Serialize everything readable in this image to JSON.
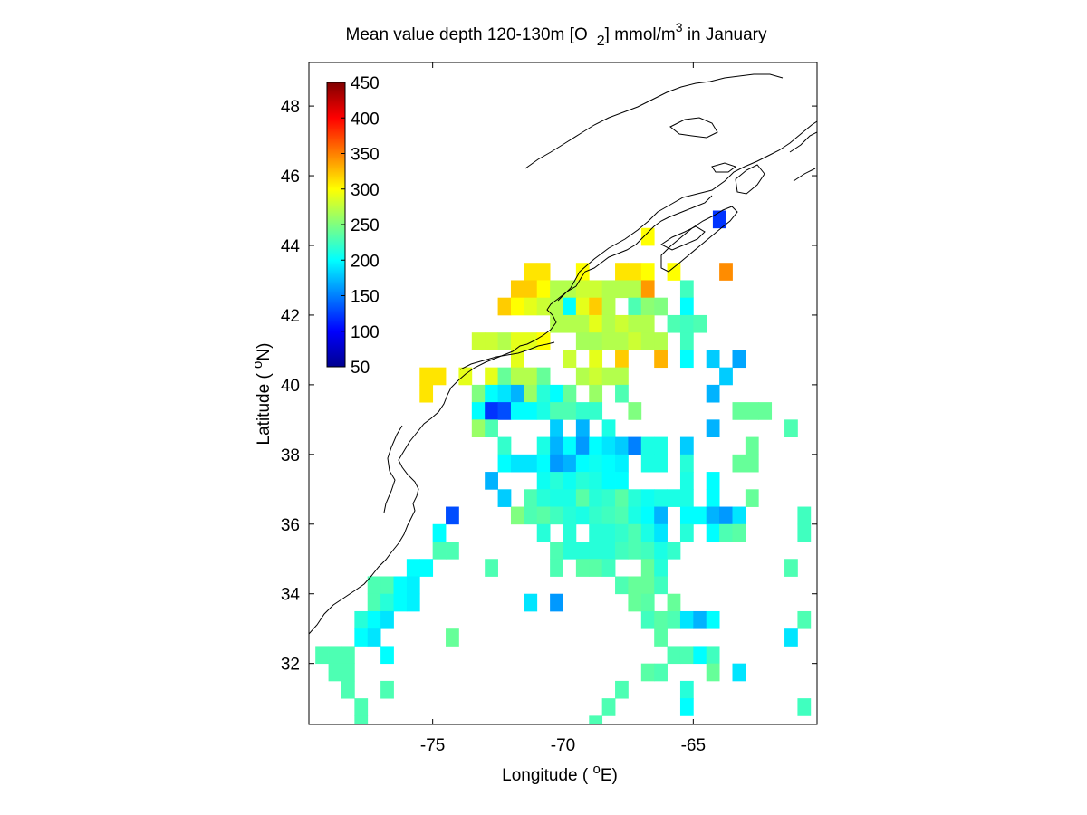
{
  "chart_data": {
    "type": "heatmap",
    "title": "Mean value depth 120-130m [O",
    "title_sub": "2",
    "title_mid": "] mmol/m",
    "title_sup": "3",
    "title_end": " in January",
    "xlabel_pre": "Longitude ( ",
    "xlabel_sup": "o",
    "xlabel_post": "E)",
    "ylabel_pre": "Latitude ( ",
    "ylabel_sup": "o",
    "ylabel_post": "N)",
    "xlim": [
      -79.75,
      -60.25
    ],
    "ylim": [
      30.25,
      49.25
    ],
    "xticks": [
      -75,
      -70,
      -65
    ],
    "xtick_labels": [
      "-75",
      "-70",
      "-65"
    ],
    "yticks": [
      32,
      34,
      36,
      38,
      40,
      42,
      44,
      46,
      48
    ],
    "ytick_labels": [
      "32",
      "34",
      "36",
      "38",
      "40",
      "42",
      "44",
      "46",
      "48"
    ],
    "colorbar": {
      "range": [
        50,
        450
      ],
      "ticks": [
        50,
        100,
        150,
        200,
        250,
        300,
        350,
        400,
        450
      ],
      "tick_labels": [
        "50",
        "100",
        "150",
        "200",
        "250",
        "300",
        "350",
        "400",
        "450"
      ],
      "colormap": "jet",
      "placement": "top-left inside axes"
    },
    "grid": false,
    "cell_size_deg": 0.5,
    "cells": [
      [
        -64.0,
        44.75,
        120
      ],
      [
        -66.75,
        44.25,
        300
      ],
      [
        -71.25,
        43.25,
        310
      ],
      [
        -70.75,
        43.25,
        310
      ],
      [
        -69.25,
        43.25,
        300
      ],
      [
        -67.75,
        43.25,
        310
      ],
      [
        -67.25,
        43.25,
        310
      ],
      [
        -66.75,
        43.25,
        300
      ],
      [
        -65.75,
        43.25,
        300
      ],
      [
        -63.75,
        43.25,
        345
      ],
      [
        -71.75,
        42.75,
        320
      ],
      [
        -71.25,
        42.75,
        320
      ],
      [
        -70.75,
        42.75,
        300
      ],
      [
        -70.25,
        42.75,
        270
      ],
      [
        -69.75,
        42.75,
        270
      ],
      [
        -69.25,
        42.75,
        280
      ],
      [
        -68.75,
        42.75,
        280
      ],
      [
        -68.25,
        42.75,
        270
      ],
      [
        -67.75,
        42.75,
        270
      ],
      [
        -67.25,
        42.75,
        270
      ],
      [
        -66.75,
        42.75,
        340
      ],
      [
        -65.25,
        42.75,
        225
      ],
      [
        -72.25,
        42.25,
        320
      ],
      [
        -71.75,
        42.25,
        300
      ],
      [
        -71.25,
        42.25,
        290
      ],
      [
        -70.75,
        42.25,
        280
      ],
      [
        -70.25,
        42.25,
        270
      ],
      [
        -69.75,
        42.25,
        200
      ],
      [
        -69.25,
        42.25,
        290
      ],
      [
        -68.75,
        42.25,
        320
      ],
      [
        -68.25,
        42.25,
        270
      ],
      [
        -67.25,
        42.25,
        230
      ],
      [
        -66.75,
        42.25,
        255
      ],
      [
        -66.25,
        42.25,
        250
      ],
      [
        -65.25,
        42.25,
        200
      ],
      [
        -70.25,
        41.75,
        270
      ],
      [
        -69.75,
        41.75,
        270
      ],
      [
        -69.25,
        41.75,
        270
      ],
      [
        -68.75,
        41.75,
        290
      ],
      [
        -68.25,
        41.75,
        270
      ],
      [
        -67.75,
        41.75,
        280
      ],
      [
        -67.25,
        41.75,
        270
      ],
      [
        -66.75,
        41.75,
        270
      ],
      [
        -65.75,
        41.75,
        230
      ],
      [
        -65.25,
        41.75,
        225
      ],
      [
        -64.75,
        41.75,
        230
      ],
      [
        -73.25,
        41.25,
        280
      ],
      [
        -72.75,
        41.25,
        280
      ],
      [
        -72.25,
        41.25,
        270
      ],
      [
        -71.75,
        41.25,
        290
      ],
      [
        -71.25,
        41.25,
        290
      ],
      [
        -70.75,
        41.25,
        300
      ],
      [
        -69.25,
        41.25,
        265
      ],
      [
        -68.75,
        41.25,
        265
      ],
      [
        -68.25,
        41.25,
        270
      ],
      [
        -67.75,
        41.25,
        270
      ],
      [
        -67.25,
        41.25,
        280
      ],
      [
        -66.75,
        41.25,
        270
      ],
      [
        -66.25,
        41.25,
        270
      ],
      [
        -65.25,
        41.25,
        225
      ],
      [
        -71.75,
        40.75,
        290
      ],
      [
        -69.75,
        40.75,
        280
      ],
      [
        -68.75,
        40.75,
        290
      ],
      [
        -67.75,
        40.75,
        320
      ],
      [
        -66.25,
        40.75,
        330
      ],
      [
        -65.25,
        40.75,
        200
      ],
      [
        -64.25,
        40.75,
        180
      ],
      [
        -63.25,
        40.75,
        165
      ],
      [
        -75.25,
        40.25,
        310
      ],
      [
        -74.75,
        40.25,
        310
      ],
      [
        -73.75,
        40.25,
        290
      ],
      [
        -72.75,
        40.25,
        290
      ],
      [
        -72.25,
        40.25,
        240
      ],
      [
        -71.75,
        40.25,
        270
      ],
      [
        -71.25,
        40.25,
        270
      ],
      [
        -70.75,
        40.25,
        240
      ],
      [
        -69.25,
        40.25,
        270
      ],
      [
        -68.75,
        40.25,
        280
      ],
      [
        -68.25,
        40.25,
        270
      ],
      [
        -67.75,
        40.25,
        270
      ],
      [
        -63.75,
        40.25,
        180
      ],
      [
        -75.25,
        39.75,
        310
      ],
      [
        -73.25,
        39.75,
        250
      ],
      [
        -72.75,
        39.75,
        200
      ],
      [
        -72.25,
        39.75,
        190
      ],
      [
        -71.75,
        39.75,
        170
      ],
      [
        -71.25,
        39.75,
        260
      ],
      [
        -70.75,
        39.75,
        215
      ],
      [
        -70.25,
        39.75,
        200
      ],
      [
        -69.75,
        39.75,
        240
      ],
      [
        -68.75,
        39.75,
        260
      ],
      [
        -67.75,
        39.75,
        230
      ],
      [
        -64.25,
        39.75,
        170
      ],
      [
        -73.25,
        39.25,
        200
      ],
      [
        -72.75,
        39.25,
        120
      ],
      [
        -72.25,
        39.25,
        130
      ],
      [
        -71.75,
        39.25,
        200
      ],
      [
        -71.25,
        39.25,
        200
      ],
      [
        -70.75,
        39.25,
        210
      ],
      [
        -70.25,
        39.25,
        230
      ],
      [
        -69.75,
        39.25,
        230
      ],
      [
        -69.25,
        39.25,
        220
      ],
      [
        -68.75,
        39.25,
        220
      ],
      [
        -67.25,
        39.25,
        250
      ],
      [
        -63.25,
        39.25,
        240
      ],
      [
        -62.75,
        39.25,
        240
      ],
      [
        -62.25,
        39.25,
        240
      ],
      [
        -73.25,
        38.75,
        260
      ],
      [
        -72.75,
        38.75,
        230
      ],
      [
        -70.25,
        38.75,
        180
      ],
      [
        -69.25,
        38.75,
        170
      ],
      [
        -68.25,
        38.75,
        210
      ],
      [
        -64.25,
        38.75,
        170
      ],
      [
        -61.25,
        38.75,
        230
      ],
      [
        -72.25,
        38.25,
        220
      ],
      [
        -70.75,
        38.25,
        210
      ],
      [
        -70.25,
        38.25,
        170
      ],
      [
        -69.75,
        38.25,
        200
      ],
      [
        -69.25,
        38.25,
        160
      ],
      [
        -68.75,
        38.25,
        200
      ],
      [
        -68.25,
        38.25,
        190
      ],
      [
        -67.75,
        38.25,
        180
      ],
      [
        -67.25,
        38.25,
        150
      ],
      [
        -66.75,
        38.25,
        210
      ],
      [
        -66.25,
        38.25,
        210
      ],
      [
        -65.25,
        38.25,
        180
      ],
      [
        -62.75,
        38.25,
        240
      ],
      [
        -72.25,
        37.75,
        200
      ],
      [
        -71.75,
        37.75,
        190
      ],
      [
        -71.25,
        37.75,
        190
      ],
      [
        -70.75,
        37.75,
        200
      ],
      [
        -70.25,
        37.75,
        160
      ],
      [
        -69.75,
        37.75,
        170
      ],
      [
        -69.25,
        37.75,
        200
      ],
      [
        -68.75,
        37.75,
        205
      ],
      [
        -68.25,
        37.75,
        200
      ],
      [
        -67.75,
        37.75,
        195
      ],
      [
        -66.75,
        37.75,
        210
      ],
      [
        -66.25,
        37.75,
        210
      ],
      [
        -65.25,
        37.75,
        215
      ],
      [
        -63.25,
        37.75,
        240
      ],
      [
        -62.75,
        37.75,
        240
      ],
      [
        -72.75,
        37.25,
        170
      ],
      [
        -70.75,
        37.25,
        205
      ],
      [
        -70.25,
        37.25,
        215
      ],
      [
        -69.75,
        37.25,
        205
      ],
      [
        -69.25,
        37.25,
        215
      ],
      [
        -68.75,
        37.25,
        210
      ],
      [
        -68.25,
        37.25,
        200
      ],
      [
        -67.75,
        37.25,
        200
      ],
      [
        -65.25,
        37.25,
        210
      ],
      [
        -64.25,
        37.25,
        200
      ],
      [
        -72.25,
        36.75,
        180
      ],
      [
        -71.25,
        36.75,
        230
      ],
      [
        -70.75,
        36.75,
        215
      ],
      [
        -70.25,
        36.75,
        210
      ],
      [
        -69.75,
        36.75,
        210
      ],
      [
        -69.25,
        36.75,
        235
      ],
      [
        -68.75,
        36.75,
        215
      ],
      [
        -68.25,
        36.75,
        220
      ],
      [
        -67.75,
        36.75,
        235
      ],
      [
        -67.25,
        36.75,
        215
      ],
      [
        -66.75,
        36.75,
        205
      ],
      [
        -66.25,
        36.75,
        210
      ],
      [
        -65.75,
        36.75,
        210
      ],
      [
        -65.25,
        36.75,
        210
      ],
      [
        -64.25,
        36.75,
        200
      ],
      [
        -62.75,
        36.75,
        240
      ],
      [
        -74.25,
        36.25,
        130
      ],
      [
        -71.75,
        36.25,
        250
      ],
      [
        -71.25,
        36.25,
        230
      ],
      [
        -70.75,
        36.25,
        235
      ],
      [
        -70.25,
        36.25,
        225
      ],
      [
        -69.75,
        36.25,
        215
      ],
      [
        -69.25,
        36.25,
        210
      ],
      [
        -68.75,
        36.25,
        220
      ],
      [
        -68.25,
        36.25,
        225
      ],
      [
        -67.75,
        36.25,
        230
      ],
      [
        -67.25,
        36.25,
        210
      ],
      [
        -66.75,
        36.25,
        200
      ],
      [
        -66.25,
        36.25,
        170
      ],
      [
        -65.25,
        36.25,
        200
      ],
      [
        -64.75,
        36.25,
        200
      ],
      [
        -64.25,
        36.25,
        170
      ],
      [
        -63.75,
        36.25,
        160
      ],
      [
        -63.25,
        36.25,
        190
      ],
      [
        -60.75,
        36.25,
        225
      ],
      [
        -74.75,
        35.75,
        200
      ],
      [
        -70.75,
        35.75,
        215
      ],
      [
        -69.75,
        35.75,
        215
      ],
      [
        -68.75,
        35.75,
        215
      ],
      [
        -68.25,
        35.75,
        215
      ],
      [
        -67.75,
        35.75,
        220
      ],
      [
        -67.25,
        35.75,
        230
      ],
      [
        -66.75,
        35.75,
        210
      ],
      [
        -66.25,
        35.75,
        190
      ],
      [
        -65.25,
        35.75,
        215
      ],
      [
        -64.25,
        35.75,
        200
      ],
      [
        -63.75,
        35.75,
        230
      ],
      [
        -63.25,
        35.75,
        235
      ],
      [
        -60.75,
        35.75,
        225
      ],
      [
        -74.75,
        35.25,
        230
      ],
      [
        -74.25,
        35.25,
        230
      ],
      [
        -70.25,
        35.25,
        230
      ],
      [
        -69.75,
        35.25,
        215
      ],
      [
        -69.25,
        35.25,
        215
      ],
      [
        -68.75,
        35.25,
        215
      ],
      [
        -68.25,
        35.25,
        215
      ],
      [
        -67.75,
        35.25,
        225
      ],
      [
        -67.25,
        35.25,
        230
      ],
      [
        -66.75,
        35.25,
        225
      ],
      [
        -66.25,
        35.25,
        210
      ],
      [
        -65.75,
        35.25,
        220
      ],
      [
        -75.75,
        34.75,
        200
      ],
      [
        -75.25,
        34.75,
        200
      ],
      [
        -72.75,
        34.75,
        230
      ],
      [
        -70.25,
        34.75,
        230
      ],
      [
        -69.25,
        34.75,
        235
      ],
      [
        -68.75,
        34.75,
        235
      ],
      [
        -68.25,
        34.75,
        225
      ],
      [
        -66.75,
        34.75,
        240
      ],
      [
        -66.25,
        34.75,
        215
      ],
      [
        -61.25,
        34.75,
        230
      ],
      [
        -77.25,
        34.25,
        230
      ],
      [
        -76.75,
        34.25,
        230
      ],
      [
        -76.25,
        34.25,
        200
      ],
      [
        -75.75,
        34.25,
        195
      ],
      [
        -67.75,
        34.25,
        230
      ],
      [
        -67.25,
        34.25,
        240
      ],
      [
        -66.75,
        34.25,
        240
      ],
      [
        -66.25,
        34.25,
        225
      ],
      [
        -77.25,
        33.75,
        230
      ],
      [
        -76.75,
        33.75,
        215
      ],
      [
        -76.25,
        33.75,
        200
      ],
      [
        -75.75,
        33.75,
        195
      ],
      [
        -71.25,
        33.75,
        190
      ],
      [
        -70.25,
        33.75,
        160
      ],
      [
        -67.25,
        33.75,
        240
      ],
      [
        -66.75,
        33.75,
        235
      ],
      [
        -65.75,
        33.75,
        240
      ],
      [
        -77.75,
        33.25,
        215
      ],
      [
        -77.25,
        33.25,
        200
      ],
      [
        -76.75,
        33.25,
        190
      ],
      [
        -66.75,
        33.25,
        225
      ],
      [
        -66.25,
        33.25,
        235
      ],
      [
        -65.75,
        33.25,
        230
      ],
      [
        -65.25,
        33.25,
        190
      ],
      [
        -64.75,
        33.25,
        170
      ],
      [
        -64.25,
        33.25,
        200
      ],
      [
        -60.75,
        33.25,
        230
      ],
      [
        -77.75,
        32.75,
        200
      ],
      [
        -77.25,
        32.75,
        190
      ],
      [
        -74.25,
        32.75,
        240
      ],
      [
        -66.25,
        32.75,
        235
      ],
      [
        -61.25,
        32.75,
        190
      ],
      [
        -79.25,
        32.25,
        230
      ],
      [
        -78.75,
        32.25,
        230
      ],
      [
        -78.25,
        32.25,
        230
      ],
      [
        -76.75,
        32.25,
        200
      ],
      [
        -65.75,
        32.25,
        230
      ],
      [
        -65.25,
        32.25,
        230
      ],
      [
        -64.75,
        32.25,
        200
      ],
      [
        -64.25,
        32.25,
        225
      ],
      [
        -78.75,
        31.75,
        230
      ],
      [
        -78.25,
        31.75,
        230
      ],
      [
        -66.75,
        31.75,
        235
      ],
      [
        -66.25,
        31.75,
        230
      ],
      [
        -64.25,
        31.75,
        240
      ],
      [
        -63.25,
        31.75,
        190
      ],
      [
        -78.25,
        31.25,
        230
      ],
      [
        -76.75,
        31.25,
        230
      ],
      [
        -67.75,
        31.25,
        230
      ],
      [
        -65.25,
        31.25,
        215
      ],
      [
        -77.75,
        30.75,
        230
      ],
      [
        -68.25,
        30.75,
        230
      ],
      [
        -65.25,
        30.75,
        200
      ],
      [
        -60.75,
        30.75,
        225
      ],
      [
        -77.75,
        30.25,
        230
      ],
      [
        -68.75,
        30.25,
        230
      ]
    ]
  }
}
